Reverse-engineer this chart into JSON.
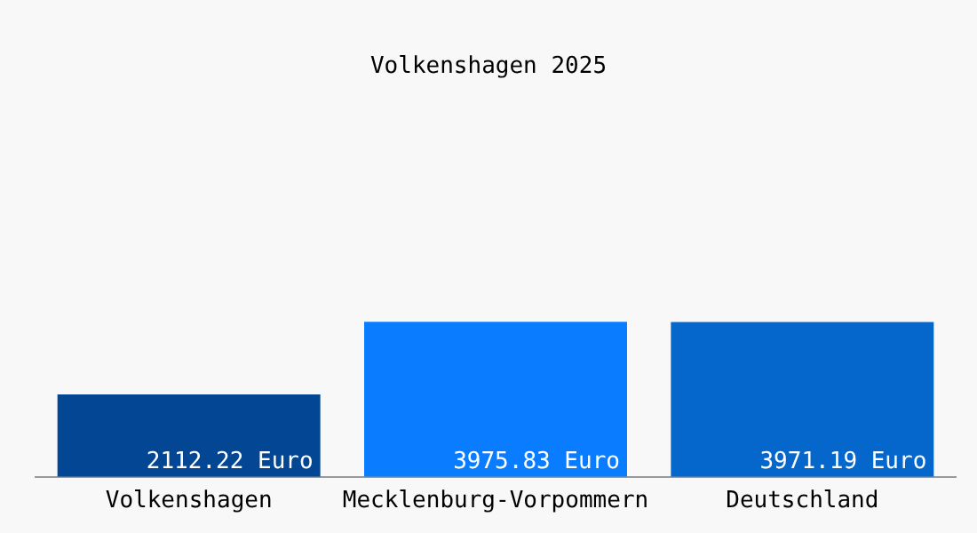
{
  "chart_data": {
    "type": "bar",
    "title": "Volkenshagen 2025",
    "categories": [
      "Volkenshagen",
      "Mecklenburg-Vorpommern",
      "Deutschland"
    ],
    "values": [
      2112.22,
      3975.83,
      3971.19
    ],
    "colors": [
      "#034694",
      "#0a7cff",
      "#0566cc"
    ],
    "value_labels": [
      "2112.22 Euro",
      "3975.83 Euro",
      "3971.19 Euro"
    ],
    "relative": false,
    "grid": false,
    "legend": false
  }
}
